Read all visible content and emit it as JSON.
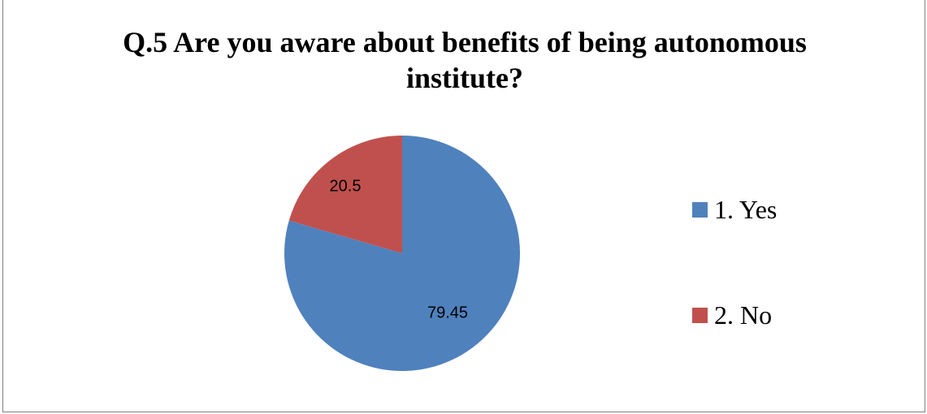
{
  "chart_data": {
    "type": "pie",
    "title_lines": [
      "Q.5 Are you aware about benefits of being autonomous",
      "institute?"
    ],
    "slices": [
      {
        "label": "1. Yes",
        "value": 79.45,
        "data_label": "79.45",
        "color": "#4f81bd"
      },
      {
        "label": "2. No",
        "value": 20.5,
        "data_label": "20.5",
        "color": "#c0504d"
      }
    ],
    "legend_position": "right",
    "start_angle": "12 o'clock",
    "direction": "clockwise"
  }
}
